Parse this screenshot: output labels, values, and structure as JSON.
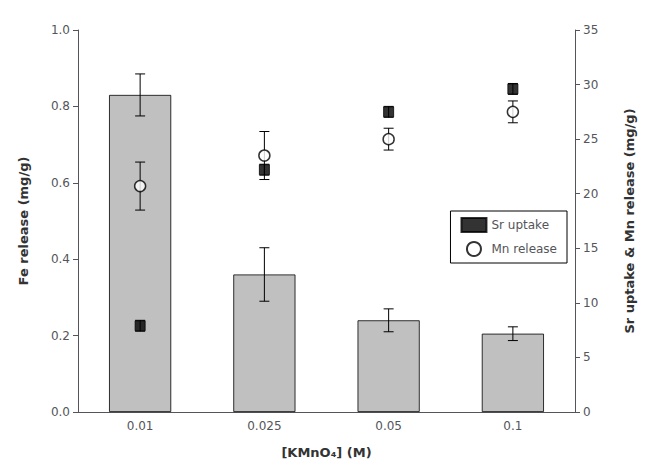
{
  "chart_data": {
    "type": "bar",
    "xlabel": "[KMnO₄] (M)",
    "ylabel": "Fe release (mg/g)",
    "y2label": "Sr uptake & Mn release (mg/g)",
    "categories": [
      "0.01",
      "0.025",
      "0.05",
      "0.1"
    ],
    "series": [
      {
        "type": "bar",
        "color": "#c0c0c0",
        "values": [
          0.83,
          0.36,
          0.24,
          0.205
        ],
        "errors": [
          0.055,
          0.07,
          0.03,
          0.018
        ]
      },
      {
        "name": "Sr uptake",
        "type": "scatter",
        "marker": "square",
        "color": "black",
        "axis": "y2",
        "values": [
          7.9,
          22.2,
          27.5,
          29.6
        ],
        "errors": [
          0.5,
          0.5,
          0.5,
          0.5
        ]
      },
      {
        "name": "Mn release",
        "type": "scatter",
        "marker": "open_circle",
        "color": "black",
        "axis": "y2",
        "values": [
          20.7,
          23.5,
          25.0,
          27.5
        ],
        "errors": [
          2.2,
          2.2,
          1.0,
          1.0
        ]
      }
    ],
    "ylim": [
      0.0,
      1.0
    ],
    "yticks": [
      {
        "value": 0.0,
        "label": "0.0"
      },
      0.2,
      0.4,
      0.6,
      0.8,
      {
        "value": 1.0,
        "label": "1.0"
      }
    ],
    "y2lim": [
      0,
      35
    ],
    "y2ticks": [
      0,
      5,
      10,
      15,
      20,
      25,
      30,
      35
    ],
    "legend": "right",
    "grid": false
  }
}
